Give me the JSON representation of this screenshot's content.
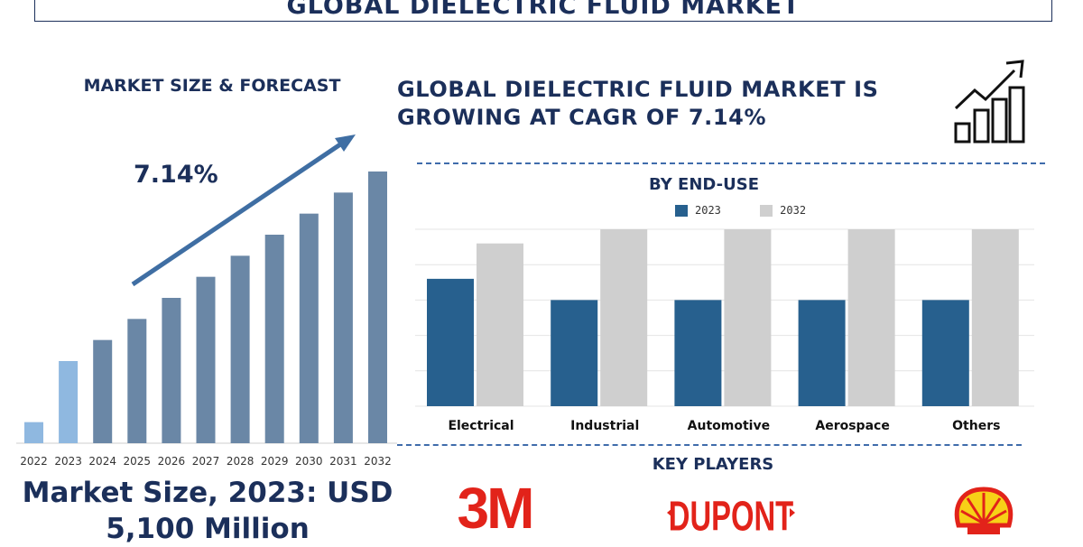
{
  "header": {
    "title": "GLOBAL DIELECTRIC FLUID MARKET"
  },
  "left_panel": {
    "heading": "MARKET SIZE & FORECAST",
    "cagr_label": "7.14%",
    "market_size_line1": "Market Size, 2023: USD",
    "market_size_line2": "5,100 Million"
  },
  "headline": {
    "line1": "GLOBAL DIELECTRIC FLUID MARKET IS",
    "line2": "GROWING AT CAGR OF 7.14%"
  },
  "end_use": {
    "title": "BY END-USE",
    "legend": [
      "2023",
      "2032"
    ]
  },
  "key_players": {
    "title": "KEY PLAYERS",
    "logos": [
      "3M",
      "DUPONT",
      "shell-logo"
    ]
  },
  "colors": {
    "navy": "#1b2f5a",
    "bar_2023": "#27608e",
    "bar_2032": "#cfcfcf",
    "forecast_bar": "#6a87a6",
    "highlight_bar": "#8fb8e0",
    "arrow": "#3f6ea3",
    "dash": "#3f6cab",
    "logo_red": "#e2231a",
    "shell_yellow": "#f7d117"
  },
  "chart_data": [
    {
      "type": "bar",
      "title": "MARKET SIZE & FORECAST",
      "categories": [
        "2022",
        "2023",
        "2024",
        "2025",
        "2026",
        "2027",
        "2028",
        "2029",
        "2030",
        "2031",
        "2032"
      ],
      "values": [
        1.0,
        3.9,
        4.9,
        5.9,
        6.9,
        7.9,
        8.9,
        9.9,
        10.9,
        11.9,
        12.9
      ],
      "ylim": [
        0,
        13.5
      ],
      "grid": false,
      "annotation": "7.14%"
    },
    {
      "type": "bar",
      "title": "BY END-USE",
      "categories": [
        "Electrical",
        "Industrial",
        "Automotive",
        "Aerospace",
        "Others"
      ],
      "series": [
        {
          "name": "2023",
          "values": [
            36,
            30,
            30,
            30,
            30
          ]
        },
        {
          "name": "2032",
          "values": [
            46,
            50,
            50,
            50,
            50
          ]
        }
      ],
      "ylim": [
        0,
        50
      ],
      "grid": true,
      "legend": "top-center"
    }
  ]
}
